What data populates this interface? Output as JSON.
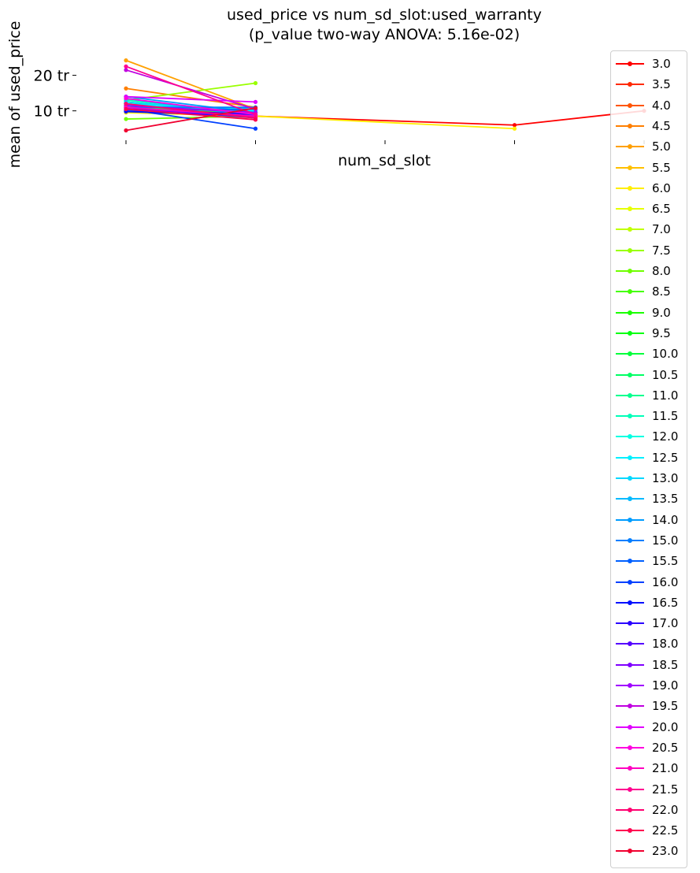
{
  "chart_data": {
    "type": "line",
    "title_line1": "used_price vs num_sd_slot:used_warranty",
    "title_line2": "(p_value two-way ANOVA: 5.16e-02)",
    "xlabel": "num_sd_slot",
    "ylabel": "mean of used_price",
    "x": [
      0,
      1,
      2,
      3,
      4
    ],
    "x_tick_labels": [
      "",
      "",
      "",
      "",
      ""
    ],
    "y_ticks": [
      10,
      20
    ],
    "y_tick_labels": [
      "10 tr",
      "20 tr"
    ],
    "ylim": [
      3.5,
      27
    ],
    "grid": false,
    "legend_placement": "right",
    "series": [
      {
        "name": "3.0",
        "color": "#ff0000",
        "values": [
          10.5,
          8.5,
          null,
          6.0,
          10.0
        ]
      },
      {
        "name": "3.5",
        "color": "#ff2a00",
        "values": [
          11.0,
          9.0,
          null,
          null,
          null
        ]
      },
      {
        "name": "4.0",
        "color": "#ff5500",
        "values": [
          12.0,
          8.5,
          null,
          null,
          null
        ]
      },
      {
        "name": "4.5",
        "color": "#ff7f00",
        "values": [
          16.3,
          11.0,
          null,
          null,
          null
        ]
      },
      {
        "name": "5.0",
        "color": "#ffa000",
        "values": [
          24.2,
          10.5,
          null,
          null,
          null
        ]
      },
      {
        "name": "5.5",
        "color": "#ffc000",
        "values": [
          11.5,
          8.0,
          null,
          null,
          null
        ]
      },
      {
        "name": "6.0",
        "color": "#ffee00",
        "values": [
          9.5,
          8.5,
          null,
          5.0,
          null
        ]
      },
      {
        "name": "6.5",
        "color": "#e6ff00",
        "values": [
          10.0,
          8.0,
          null,
          null,
          null
        ]
      },
      {
        "name": "7.0",
        "color": "#c0ff00",
        "values": [
          12.5,
          9.5,
          null,
          null,
          null
        ]
      },
      {
        "name": "7.5",
        "color": "#9aff00",
        "values": [
          13.0,
          17.8,
          null,
          null,
          null
        ]
      },
      {
        "name": "8.0",
        "color": "#70ff00",
        "values": [
          7.7,
          8.5,
          null,
          null,
          null
        ]
      },
      {
        "name": "8.5",
        "color": "#45ff00",
        "values": [
          11.0,
          9.5,
          null,
          null,
          null
        ]
      },
      {
        "name": "9.0",
        "color": "#1aff00",
        "values": [
          12.0,
          9.0,
          null,
          null,
          null
        ]
      },
      {
        "name": "9.5",
        "color": "#00ff10",
        "values": [
          11.5,
          10.0,
          null,
          null,
          null
        ]
      },
      {
        "name": "10.0",
        "color": "#00ff3a",
        "values": [
          12.5,
          9.0,
          null,
          null,
          null
        ]
      },
      {
        "name": "10.5",
        "color": "#00ff64",
        "values": [
          11.0,
          9.5,
          null,
          null,
          null
        ]
      },
      {
        "name": "11.0",
        "color": "#00ff8e",
        "values": [
          12.0,
          9.0,
          null,
          null,
          null
        ]
      },
      {
        "name": "11.5",
        "color": "#00ffb8",
        "values": [
          13.0,
          9.5,
          null,
          null,
          null
        ]
      },
      {
        "name": "12.0",
        "color": "#00ffe2",
        "values": [
          11.5,
          10.5,
          null,
          null,
          null
        ]
      },
      {
        "name": "12.5",
        "color": "#00f0ff",
        "values": [
          12.0,
          10.0,
          null,
          null,
          null
        ]
      },
      {
        "name": "13.0",
        "color": "#00d8ff",
        "values": [
          12.5,
          9.5,
          null,
          null,
          null
        ]
      },
      {
        "name": "13.5",
        "color": "#00baff",
        "values": [
          13.5,
          8.5,
          null,
          null,
          null
        ]
      },
      {
        "name": "14.0",
        "color": "#009cff",
        "values": [
          14.0,
          9.5,
          null,
          null,
          null
        ]
      },
      {
        "name": "15.0",
        "color": "#007eff",
        "values": [
          11.0,
          11.0,
          null,
          null,
          null
        ]
      },
      {
        "name": "15.5",
        "color": "#0060ff",
        "values": [
          10.0,
          10.5,
          null,
          null,
          null
        ]
      },
      {
        "name": "16.0",
        "color": "#0040ff",
        "values": [
          10.5,
          5.0,
          null,
          null,
          null
        ]
      },
      {
        "name": "16.5",
        "color": "#0010ff",
        "values": [
          9.8,
          8.5,
          null,
          null,
          null
        ]
      },
      {
        "name": "17.0",
        "color": "#2a00ff",
        "values": [
          10.5,
          9.0,
          null,
          null,
          null
        ]
      },
      {
        "name": "18.0",
        "color": "#5500ff",
        "values": [
          11.0,
          8.0,
          null,
          null,
          null
        ]
      },
      {
        "name": "18.5",
        "color": "#7f00ff",
        "values": [
          10.5,
          8.5,
          null,
          null,
          null
        ]
      },
      {
        "name": "19.0",
        "color": "#a000ff",
        "values": [
          11.5,
          9.5,
          null,
          null,
          null
        ]
      },
      {
        "name": "19.5",
        "color": "#c000e0",
        "values": [
          21.5,
          10.5,
          null,
          null,
          null
        ]
      },
      {
        "name": "20.0",
        "color": "#e000ff",
        "values": [
          14.0,
          12.5,
          null,
          null,
          null
        ]
      },
      {
        "name": "20.5",
        "color": "#ff00e0",
        "values": [
          13.5,
          9.0,
          null,
          null,
          null
        ]
      },
      {
        "name": "21.0",
        "color": "#ff00c0",
        "values": [
          11.0,
          8.5,
          null,
          null,
          null
        ]
      },
      {
        "name": "21.5",
        "color": "#ff0090",
        "values": [
          22.5,
          9.0,
          null,
          null,
          null
        ]
      },
      {
        "name": "22.0",
        "color": "#ff0070",
        "values": [
          12.0,
          8.0,
          null,
          null,
          null
        ]
      },
      {
        "name": "22.5",
        "color": "#ff0050",
        "values": [
          10.5,
          7.5,
          null,
          null,
          null
        ]
      },
      {
        "name": "23.0",
        "color": "#f00030",
        "values": [
          4.5,
          10.8,
          null,
          null,
          null
        ]
      }
    ]
  }
}
